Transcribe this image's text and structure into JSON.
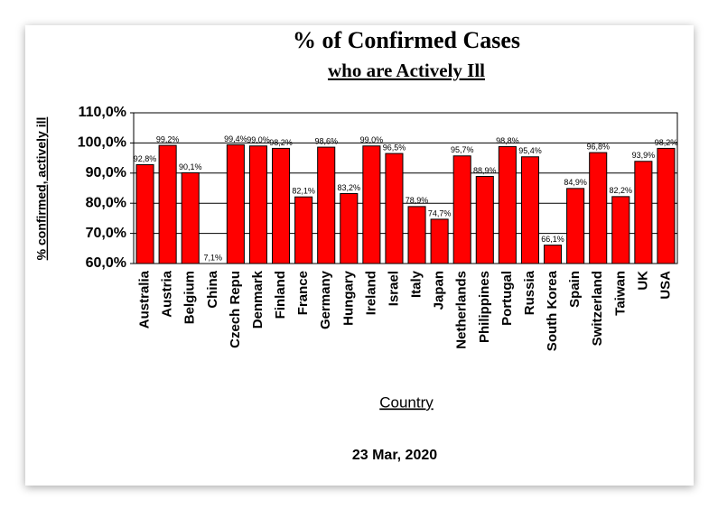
{
  "chart_data": {
    "type": "bar",
    "title": "% of Confirmed Cases",
    "subtitle": "who are Actively Ill",
    "y_label": "% confirmed, actively ill",
    "x_label": "Country",
    "footer": "23 Mar, 2020",
    "categories": [
      "Australia",
      "Austria",
      "Belgium",
      "China",
      "Czech Repu",
      "Denmark",
      "Finland",
      "France",
      "Germany",
      "Hungary",
      "Ireland",
      "Israel",
      "Italy",
      "Japan",
      "Netherlands",
      "Philippines",
      "Portugal",
      "Russia",
      "South Korea",
      "Spain",
      "Switzerland",
      "Taiwan",
      "UK",
      "USA"
    ],
    "values": [
      92.8,
      99.2,
      90.1,
      7.1,
      99.4,
      99.0,
      98.2,
      82.1,
      98.6,
      83.2,
      99.0,
      96.5,
      78.9,
      74.7,
      95.7,
      88.9,
      98.8,
      95.4,
      66.1,
      84.9,
      96.8,
      82.2,
      93.9,
      98.2
    ],
    "value_labels": [
      "92,8%",
      "99,2%",
      "90,1%",
      "7,1%",
      "99,4%",
      "99,0%",
      "98,2%",
      "82,1%",
      "98,6%",
      "83,2%",
      "99,0%",
      "96,5%",
      "78,9%",
      "74,7%",
      "95,7%",
      "88,9%",
      "98,8%",
      "95,4%",
      "66,1%",
      "84,9%",
      "96,8%",
      "82,2%",
      "93,9%",
      "98,2%"
    ],
    "color": "#ff0000",
    "ylim": [
      60,
      110
    ],
    "yticks": [
      {
        "value": 60,
        "label": "60,0%"
      },
      {
        "value": 70,
        "label": "70,0%"
      },
      {
        "value": 80,
        "label": "80,0%"
      },
      {
        "value": 90,
        "label": "90,0%"
      },
      {
        "value": 100,
        "label": "100,0%"
      },
      {
        "value": 110,
        "label": "110,0%"
      }
    ],
    "grid": true
  }
}
